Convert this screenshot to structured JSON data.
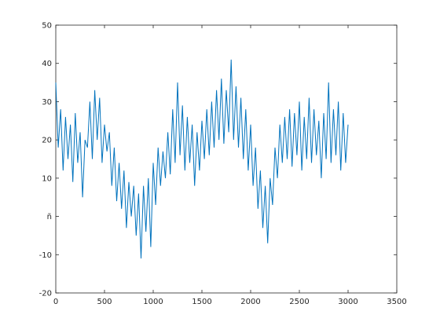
{
  "chart_data": {
    "type": "line",
    "xlim": [
      0,
      3500
    ],
    "xticks": [
      0,
      500,
      1000,
      1500,
      2000,
      2500,
      3000,
      3500
    ],
    "ylim": [
      -20,
      50
    ],
    "yticks": [
      -20,
      -10,
      {
        "value": 0,
        "label": "ñ"
      },
      10,
      20,
      30,
      40,
      50
    ],
    "x": [
      0,
      25,
      50,
      75,
      100,
      125,
      150,
      175,
      200,
      225,
      250,
      275,
      300,
      325,
      350,
      375,
      400,
      425,
      450,
      475,
      500,
      525,
      550,
      575,
      600,
      625,
      650,
      675,
      700,
      725,
      750,
      775,
      800,
      825,
      850,
      875,
      900,
      925,
      950,
      975,
      1000,
      1025,
      1050,
      1075,
      1100,
      1125,
      1150,
      1175,
      1200,
      1225,
      1250,
      1275,
      1300,
      1325,
      1350,
      1375,
      1400,
      1425,
      1450,
      1475,
      1500,
      1525,
      1550,
      1575,
      1600,
      1625,
      1650,
      1675,
      1700,
      1725,
      1750,
      1775,
      1800,
      1825,
      1850,
      1875,
      1900,
      1925,
      1950,
      1975,
      2000,
      2025,
      2050,
      2075,
      2100,
      2125,
      2150,
      2175,
      2200,
      2225,
      2250,
      2275,
      2300,
      2325,
      2350,
      2375,
      2400,
      2425,
      2450,
      2475,
      2500,
      2525,
      2550,
      2575,
      2600,
      2625,
      2650,
      2675,
      2700,
      2725,
      2750,
      2775,
      2800,
      2825,
      2850,
      2875,
      2900,
      2925,
      2950,
      2975,
      3000
    ],
    "series": [
      {
        "color": "#0072bd",
        "values": [
          35,
          18,
          28,
          12,
          26,
          15,
          24,
          9,
          27,
          14,
          22,
          5,
          20,
          18,
          30,
          15,
          33,
          20,
          31,
          14,
          24,
          17,
          22,
          8,
          18,
          4,
          14,
          2,
          12,
          -3,
          9,
          0,
          8,
          -5,
          6,
          -11,
          8,
          -4,
          10,
          -8,
          14,
          3,
          18,
          8,
          17,
          10,
          22,
          11,
          28,
          14,
          35,
          16,
          29,
          12,
          26,
          14,
          24,
          8,
          22,
          12,
          25,
          15,
          28,
          16,
          30,
          18,
          33,
          20,
          36,
          19,
          33,
          22,
          41,
          20,
          34,
          18,
          31,
          15,
          28,
          12,
          24,
          8,
          18,
          2,
          12,
          -3,
          8,
          -7,
          10,
          3,
          18,
          10,
          24,
          14,
          26,
          15,
          28,
          13,
          27,
          16,
          30,
          12,
          26,
          15,
          31,
          14,
          28,
          16,
          25,
          10,
          27,
          15,
          35,
          14,
          28,
          16,
          30,
          12,
          27,
          14,
          24
        ]
      }
    ]
  }
}
